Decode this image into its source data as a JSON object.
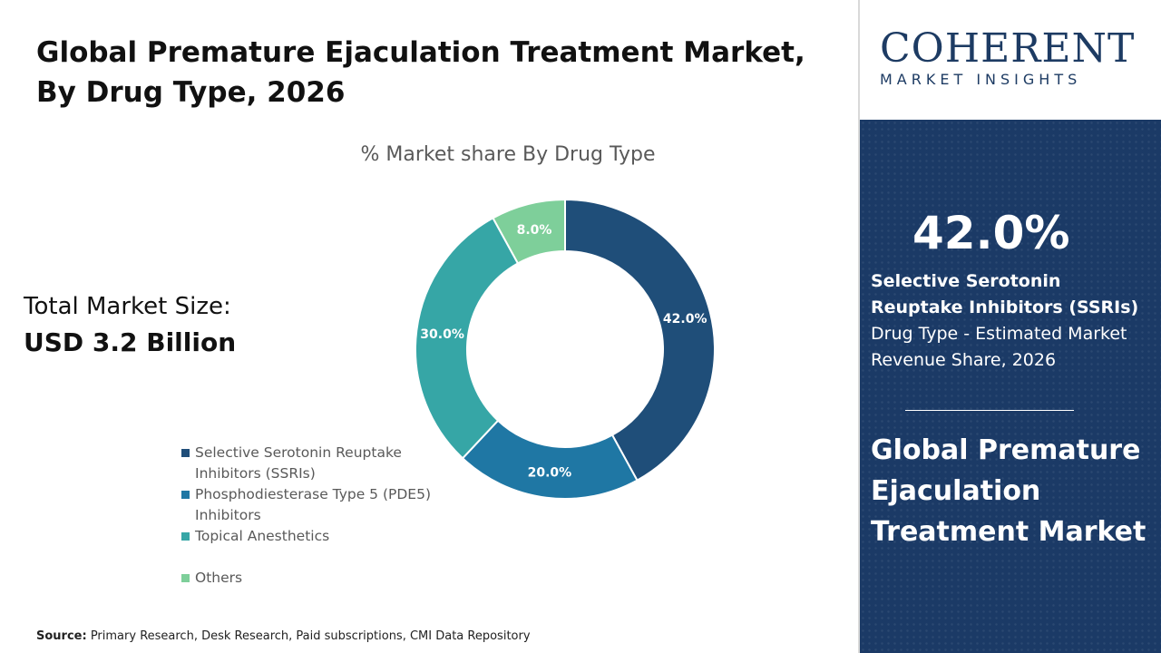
{
  "header": {
    "title_line1": "Global Premature Ejaculation Treatment Market,",
    "title_line2": "By Drug Type, 2026"
  },
  "market_size": {
    "label": "Total Market Size:",
    "value": "USD 3.2 Billion"
  },
  "source": {
    "label": "Source:",
    "text": " Primary Research, Desk Research, Paid subscriptions, CMI Data Repository"
  },
  "logo": {
    "main": "COHERENT",
    "sub": "MARKET INSIGHTS"
  },
  "highlight": {
    "percent": "42.0%",
    "desc_bold": "Selective Serotonin Reuptake Inhibitors (SSRIs)",
    "desc_rest": " Drug Type - Estimated Market Revenue Share, 2026",
    "market_name": "Global Premature Ejaculation Treatment Market"
  },
  "chart_data": {
    "type": "pie",
    "donut": true,
    "title": "% Market share By Drug Type",
    "categories": [
      "Selective Serotonin Reuptake Inhibitors (SSRIs)",
      "Phosphodiesterase Type 5 (PDE5) Inhibitors",
      "Topical Anesthetics",
      "Others"
    ],
    "legend_lines": [
      [
        "Selective Serotonin Reuptake",
        "Inhibitors (SSRIs)"
      ],
      [
        "Phosphodiesterase Type 5 (PDE5)",
        "Inhibitors"
      ],
      [
        "Topical Anesthetics"
      ],
      [
        "Others"
      ]
    ],
    "values": [
      42.0,
      20.0,
      30.0,
      8.0
    ],
    "data_labels": [
      "42.0%",
      "20.0%",
      "30.0%",
      "8.0%"
    ],
    "colors": [
      "#1f4e79",
      "#1f77a4",
      "#36a6a6",
      "#7ecf9a"
    ],
    "legend_position": "bottom-left"
  },
  "colors": {
    "panel_bg": "#1b3a66",
    "logo": "#1d3b63"
  }
}
